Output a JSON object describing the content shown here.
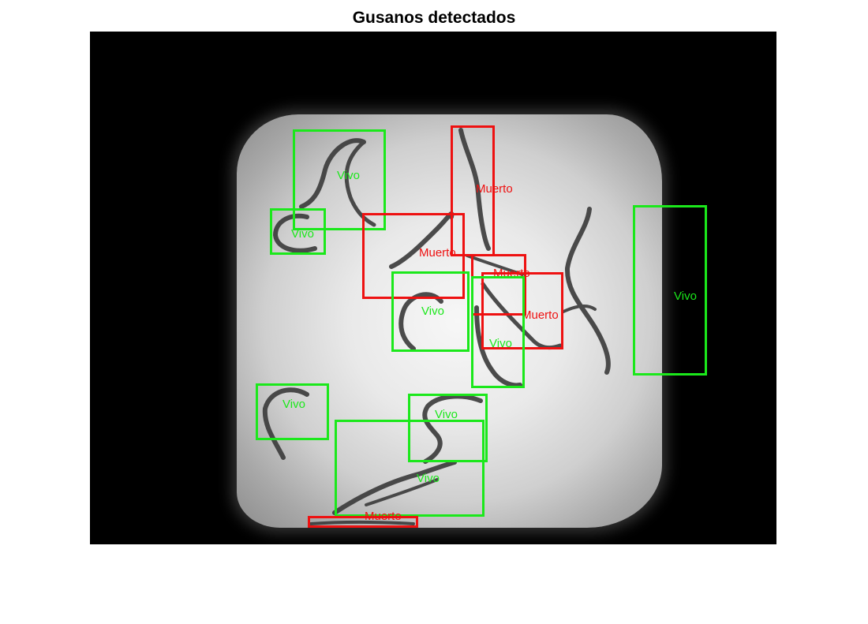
{
  "title": "Gusanos detectados",
  "colors": {
    "live": "#1be81b",
    "dead": "#ee1111"
  },
  "detections": [
    {
      "label": "Vivo",
      "status": "live"
    },
    {
      "label": "Vivo",
      "status": "live"
    },
    {
      "label": "Muerto",
      "status": "dead"
    },
    {
      "label": "Muerto",
      "status": "dead"
    },
    {
      "label": "Muerto",
      "status": "dead"
    },
    {
      "label": "Vivo",
      "status": "live"
    },
    {
      "label": "Muerto",
      "status": "dead"
    },
    {
      "label": "Vivo",
      "status": "live"
    },
    {
      "label": "Vivo",
      "status": "live"
    },
    {
      "label": "Vivo",
      "status": "live"
    },
    {
      "label": "Vivo",
      "status": "live"
    },
    {
      "label": "Vivo",
      "status": "live"
    },
    {
      "label": "Muerto",
      "status": "dead"
    }
  ]
}
